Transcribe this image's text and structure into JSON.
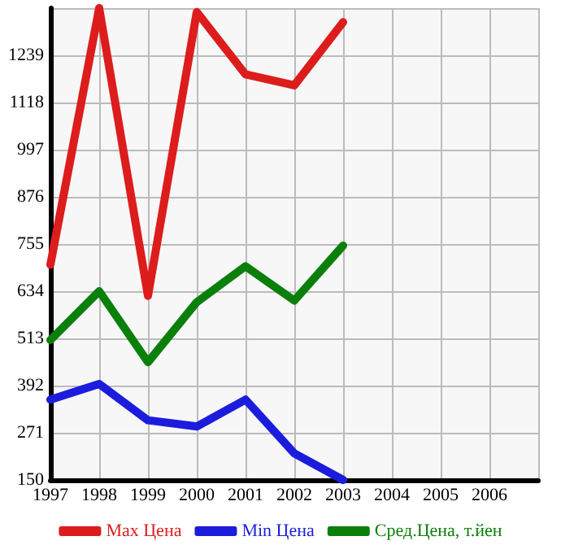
{
  "chart_data": {
    "type": "line",
    "x": [
      1997,
      1998,
      1999,
      2000,
      2001,
      2002,
      2003
    ],
    "series": [
      {
        "name": "Max Цена",
        "color": "#dd1c1c",
        "values": [
          702,
          1360,
          622,
          1350,
          1190,
          1162,
          1324
        ]
      },
      {
        "name": "Min Цена",
        "color": "#1c1cdd",
        "values": [
          356,
          396,
          303,
          287,
          356,
          218,
          150
        ]
      },
      {
        "name": "Сред.Цена, т.йен",
        "color": "#0a800a",
        "values": [
          509,
          634,
          452,
          606,
          698,
          610,
          751
        ]
      }
    ],
    "xlim": [
      1997,
      2007
    ],
    "xticks": [
      1997,
      1998,
      1999,
      2000,
      2001,
      2002,
      2003,
      2004,
      2005,
      2006,
      {
        "value": 2007,
        "label": null
      }
    ],
    "ylim": [
      150,
      1360
    ],
    "yticks": [
      150,
      271,
      392,
      513,
      634,
      755,
      876,
      997,
      1118,
      1239,
      {
        "value": 1360,
        "label": null
      }
    ],
    "grid": true,
    "legend": "bottom",
    "marker": "none",
    "line_style": "solid"
  }
}
